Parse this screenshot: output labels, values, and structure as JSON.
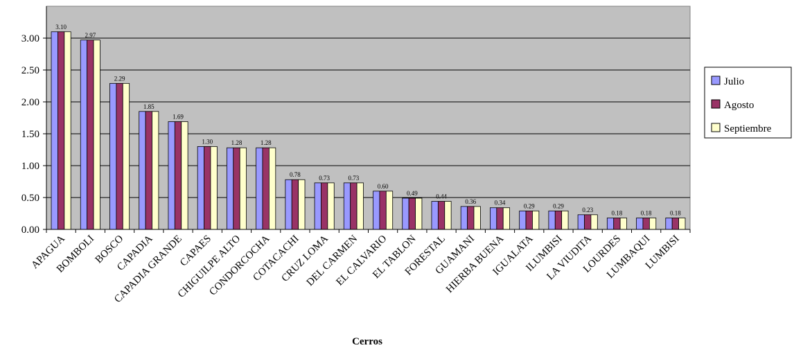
{
  "chart_data": {
    "type": "bar",
    "title": "",
    "xlabel": "Cerros",
    "ylabel": "",
    "ylim": [
      0,
      3.5
    ],
    "yticks": [
      "0.00",
      "0.50",
      "1.00",
      "1.50",
      "2.00",
      "2.50",
      "3.00"
    ],
    "grid": true,
    "legend_position": "right",
    "categories": [
      "APAGUA",
      "BOMBOLI",
      "BOSCO",
      "CAPADIA",
      "CAPADIA GRANDE",
      "CAPAES",
      "CHIGUILPE ALTO",
      "CONDORCOCHA",
      "COTACACHI",
      "CRUZ LOMA",
      "DEL CARMEN",
      "EL CALVARIO",
      "EL TABLON",
      "FORESTAL",
      "GUAMANI",
      "HIERBA BUENA",
      "IGUALATA",
      "ILUMBISI",
      "LA VIUDITA",
      "LOURDES",
      "LUMBAQUI",
      "LUMBISI"
    ],
    "data_labels": [
      "3.10",
      "2.97",
      "2.29",
      "1.85",
      "1.69",
      "1.30",
      "1.28",
      "1.28",
      "0.78",
      "0.73",
      "0.73",
      "0.60",
      "0.49",
      "0.44",
      "0.36",
      "0.34",
      "0.29",
      "0.29",
      "0.23",
      "0.18",
      "0.18",
      "0.18"
    ],
    "series": [
      {
        "name": "Julio",
        "color": "#9999ff",
        "values": [
          3.1,
          2.97,
          2.29,
          1.85,
          1.69,
          1.3,
          1.28,
          1.28,
          0.78,
          0.73,
          0.73,
          0.6,
          0.49,
          0.44,
          0.36,
          0.34,
          0.29,
          0.29,
          0.23,
          0.18,
          0.18,
          0.18
        ]
      },
      {
        "name": "Agosto",
        "color": "#993366",
        "values": [
          3.1,
          2.97,
          2.29,
          1.85,
          1.69,
          1.3,
          1.28,
          1.28,
          0.78,
          0.73,
          0.73,
          0.6,
          0.49,
          0.44,
          0.36,
          0.34,
          0.29,
          0.29,
          0.23,
          0.18,
          0.18,
          0.18
        ]
      },
      {
        "name": "Septiembre",
        "color": "#ffffcc",
        "values": [
          3.1,
          2.97,
          2.29,
          1.85,
          1.69,
          1.3,
          1.28,
          1.28,
          0.78,
          0.73,
          0.73,
          0.6,
          0.49,
          0.44,
          0.36,
          0.34,
          0.29,
          0.29,
          0.23,
          0.18,
          0.18,
          0.18
        ]
      }
    ],
    "plot_background": "#c0c0c0"
  }
}
